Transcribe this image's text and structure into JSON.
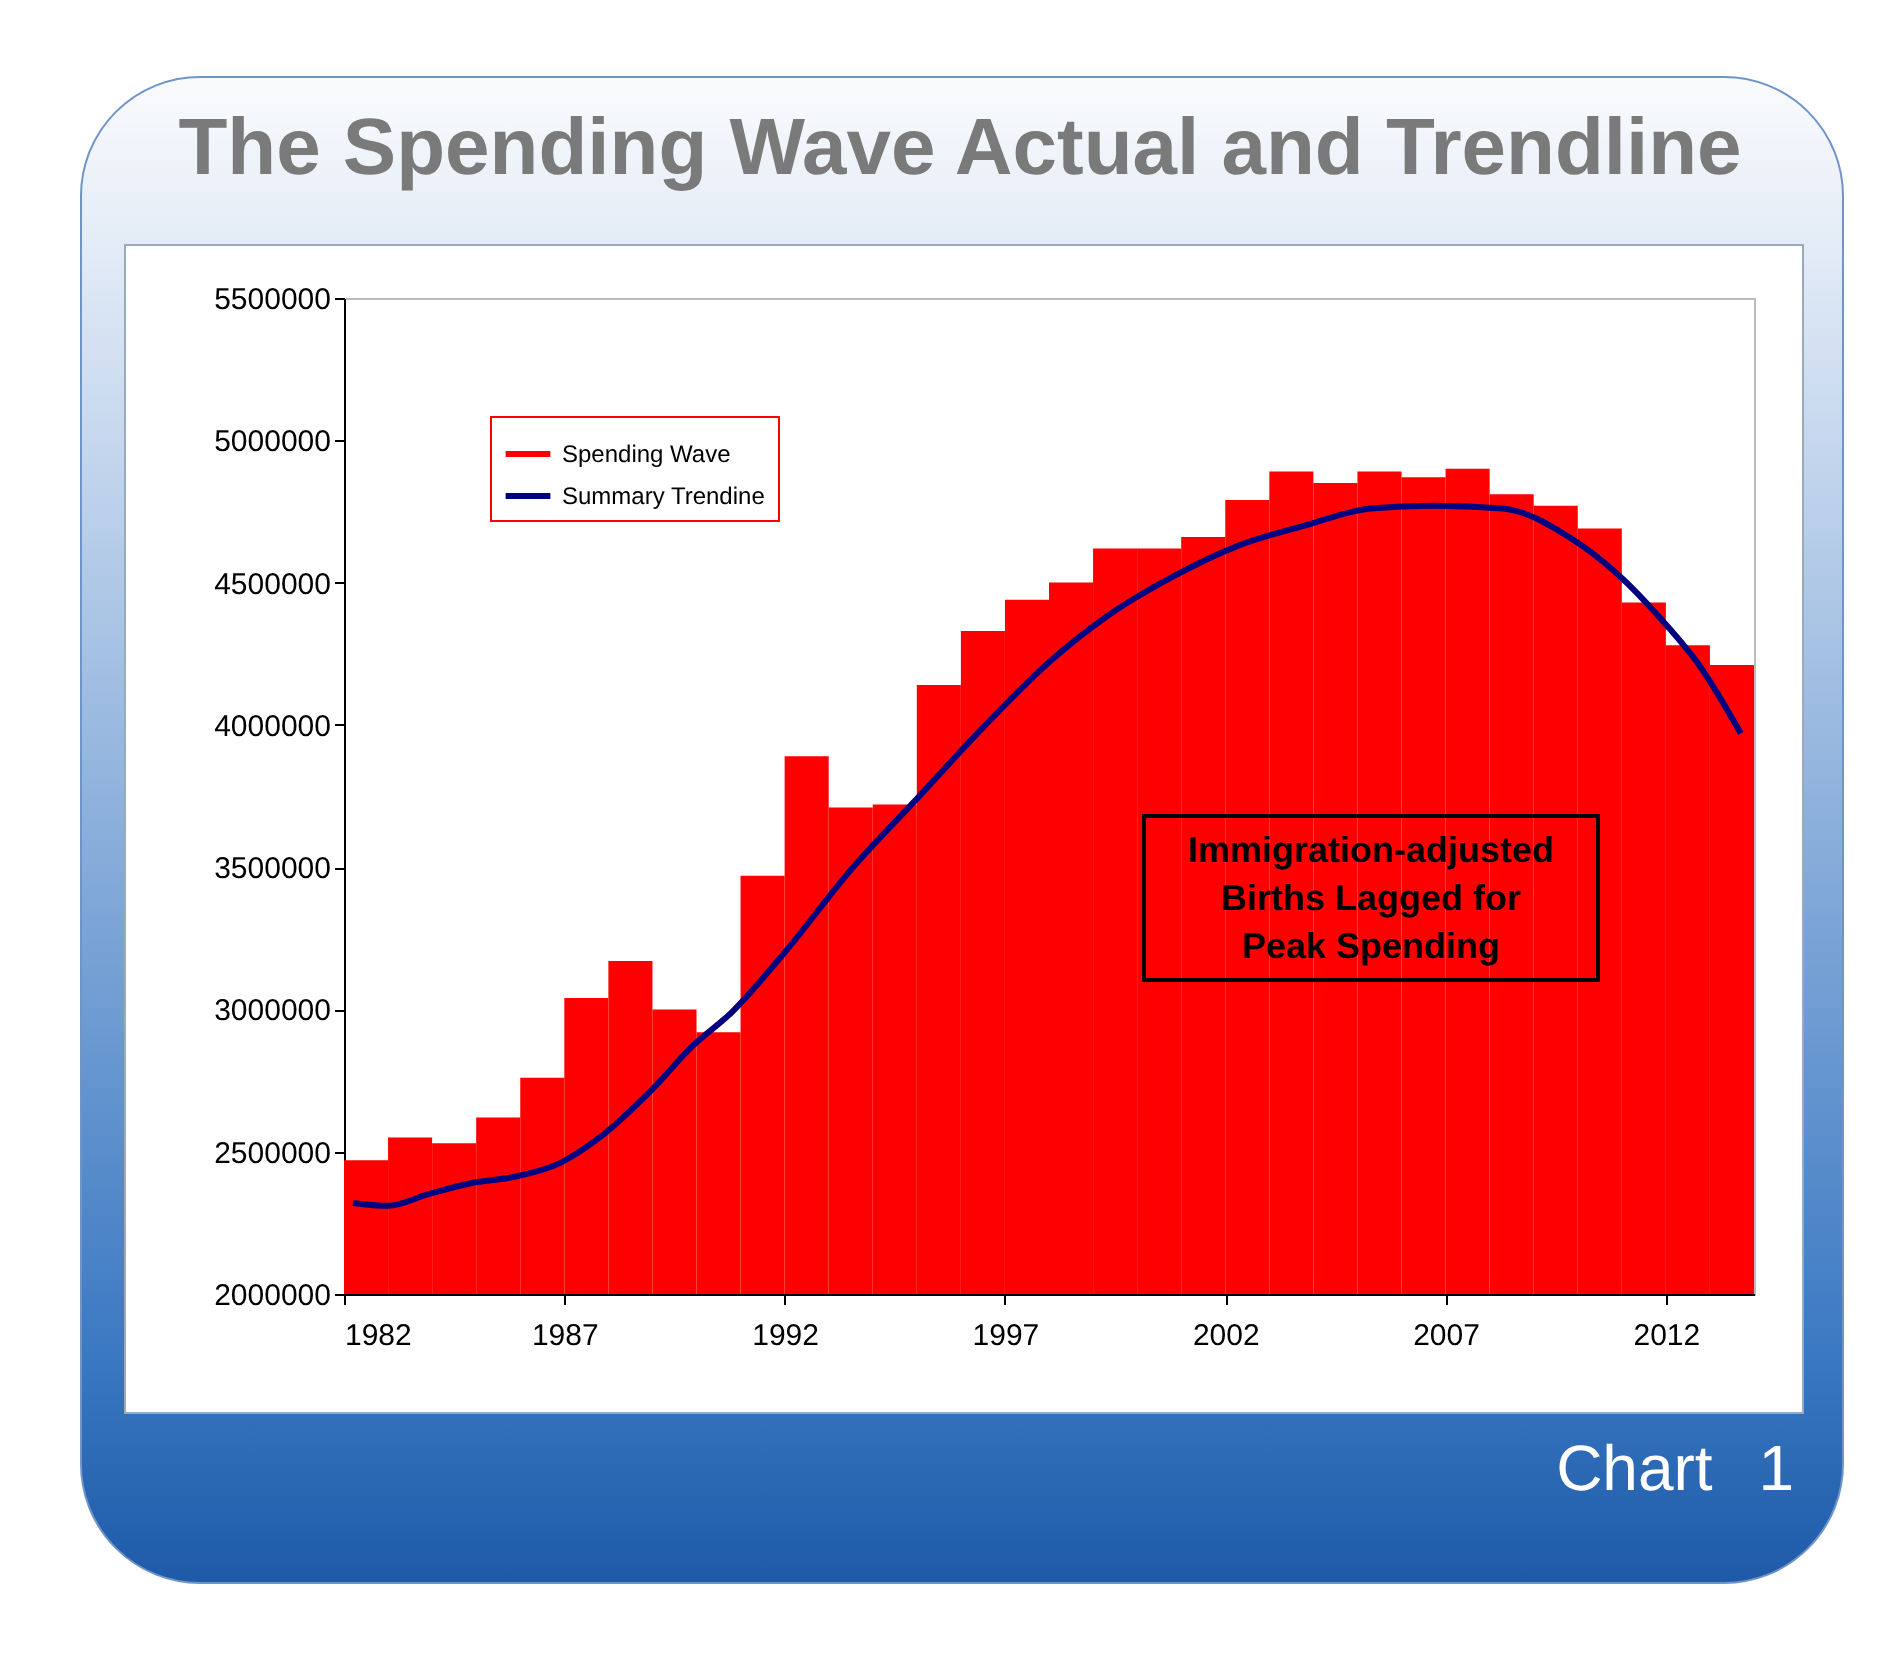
{
  "chart_data": {
    "type": "histogram",
    "title": "The Spending Wave Actual and Trendline",
    "xlim": [
      1982,
      2014
    ],
    "xticks": [
      1982,
      1987,
      1992,
      1997,
      2002,
      2007,
      2012
    ],
    "ylim": [
      2000000,
      5500000
    ],
    "yticks": [
      2000000,
      2500000,
      3000000,
      3500000,
      4000000,
      4500000,
      5000000,
      5500000
    ],
    "legend": "top left",
    "annotations": [
      "Immigration-adjusted Births Lagged for Peak Spending",
      "Chart 1"
    ],
    "series": [
      {
        "name": "Spending Wave",
        "color": "#ff0000",
        "bins": [
          1982,
          1983,
          1984,
          1985,
          1986,
          1987,
          1988,
          1989,
          1990,
          1991,
          1992,
          1993,
          1994,
          1995,
          1996,
          1997,
          1998,
          1999,
          2000,
          2001,
          2002,
          2003,
          2004,
          2005,
          2006,
          2007,
          2008,
          2009,
          2010,
          2011,
          2012,
          2013,
          2014
        ],
        "values": [
          2470000,
          2550000,
          2530000,
          2620000,
          2760000,
          3040000,
          3170000,
          3000000,
          2920000,
          3470000,
          3890000,
          3710000,
          3720000,
          4140000,
          4330000,
          4440000,
          4500000,
          4620000,
          4620000,
          4660000,
          4790000,
          4890000,
          4850000,
          4890000,
          4870000,
          4900000,
          4810000,
          4770000,
          4690000,
          4430000,
          4280000,
          4210000
        ]
      },
      {
        "name": "Summary Trendine",
        "type": "line",
        "color": "#000080",
        "x": [
          1982.2,
          1983.0,
          1983.9,
          1984.9,
          1985.8,
          1986.9,
          1987.8,
          1989.0,
          1989.9,
          1990.8,
          1992.0,
          1993.5,
          1995.0,
          1996.5,
          1998.0,
          1999.3,
          2000.8,
          2002.3,
          2003.8,
          2005.3,
          2006.7,
          2008.3,
          2009.8,
          2010.9,
          2011.9,
          2012.8,
          2013.7
        ],
        "values": [
          2320000,
          2310000,
          2350000,
          2390000,
          2410000,
          2460000,
          2550000,
          2720000,
          2870000,
          2990000,
          3200000,
          3490000,
          3740000,
          3990000,
          4220000,
          4380000,
          4520000,
          4630000,
          4700000,
          4760000,
          4770000,
          4760000,
          4660000,
          4530000,
          4370000,
          4200000,
          3970000
        ]
      }
    ]
  }
}
